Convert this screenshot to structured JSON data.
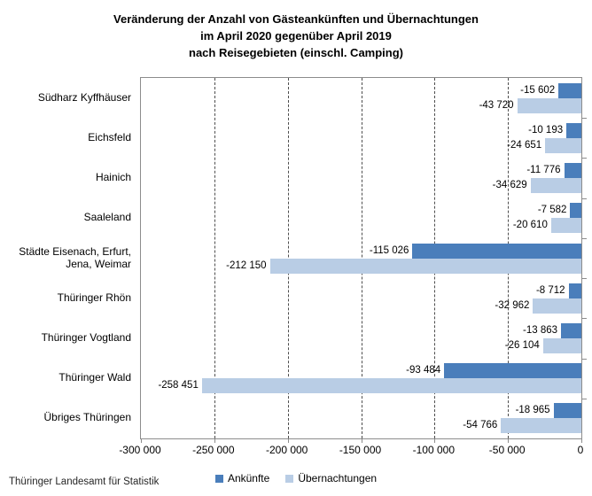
{
  "header": {
    "lines": [
      "Veränderung der Anzahl von Gästeankünften und Übernachtungen",
      "im April 2020 gegenüber April 2019",
      "nach Reisegebieten (einschl. Camping)"
    ]
  },
  "footer": {
    "text": "Thüringer Landesamt für Statistik"
  },
  "colors": {
    "ankuenfte": "#4a7ebb",
    "uebernachtungen": "#b9cde5",
    "plot_border": "#8c8c8c",
    "gridline": "#4d4d4d"
  },
  "chart_data": {
    "type": "bar",
    "orientation": "horizontal",
    "title": "Veränderung der Anzahl von Gästeankünften und Übernachtungen im April 2020 gegenüber April 2019 nach Reisegebieten (einschl. Camping)",
    "categories": [
      "Südharz Kyffhäuser",
      "Eichsfeld",
      "Hainich",
      "Saaleland",
      "Städte Eisenach, Erfurt,\nJena, Weimar",
      "Thüringer Rhön",
      "Thüringer Vogtland",
      "Thüringer Wald",
      "Übriges Thüringen"
    ],
    "series": [
      {
        "name": "Ankünfte",
        "key": "ankuenfte",
        "color": "#4a7ebb",
        "values": [
          -15602,
          -10193,
          -11776,
          -7582,
          -115026,
          -8712,
          -13863,
          -93484,
          -18965
        ],
        "labels": [
          "-15 602",
          "-10 193",
          "-11 776",
          "-7 582",
          "-115 026",
          "-8 712",
          "-13 863",
          "-93 484",
          "-18 965"
        ]
      },
      {
        "name": "Übernachtungen",
        "key": "uebernachtungen",
        "color": "#b9cde5",
        "values": [
          -43720,
          -24651,
          -34629,
          -20610,
          -212150,
          -32962,
          -26104,
          -258451,
          -54766
        ],
        "labels": [
          "-43 720",
          "-24 651",
          "-34 629",
          "-20 610",
          "-212 150",
          "-32 962",
          "-26 104",
          "-258 451",
          "-54 766"
        ]
      }
    ],
    "xlim": [
      -300000,
      0
    ],
    "x_ticks": [
      {
        "value": -300000,
        "label": "-300 000"
      },
      {
        "value": -250000,
        "label": "-250 000"
      },
      {
        "value": -200000,
        "label": "-200 000"
      },
      {
        "value": -150000,
        "label": "-150 000"
      },
      {
        "value": -100000,
        "label": "-100 000"
      },
      {
        "value": -50000,
        "label": "-50 000"
      },
      {
        "value": 0,
        "label": "0"
      }
    ],
    "grid": "dashed-vertical",
    "legend_position": "bottom",
    "xlabel": "",
    "ylabel": ""
  }
}
